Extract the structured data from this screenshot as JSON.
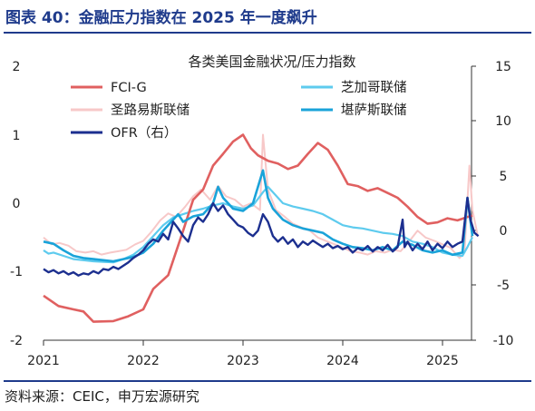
{
  "figure": {
    "title": "图表 40：金融压力指数在 2025 年一度飙升",
    "source": "资料来源：CEIC，申万宏源研究"
  },
  "colors": {
    "brand": "#1f3b8c",
    "fci_g": "#e06060",
    "chicago": "#5ecbee",
    "stlouis": "#f7c8c8",
    "kansas": "#1aa3d9",
    "ofr": "#1c2f8f"
  },
  "chart_data": {
    "type": "line",
    "title": "各类美国金融状况/压力指数",
    "x_ticks": [
      "2021",
      "2022",
      "2023",
      "2024",
      "2025"
    ],
    "x_range": [
      2021.0,
      2025.6
    ],
    "y_left": {
      "range": [
        -2,
        2
      ],
      "ticks": [
        "2",
        "1",
        "0",
        "-1",
        "-2"
      ]
    },
    "y_right": {
      "range": [
        -10,
        15
      ],
      "ticks": [
        "15",
        "10",
        "5",
        "0",
        "-5",
        "-10"
      ]
    },
    "legend_position": "top",
    "grid": false,
    "series": [
      {
        "name": "FCI-G",
        "axis": "left",
        "color_key": "fci_g",
        "points": [
          [
            2021.0,
            -1.35
          ],
          [
            2021.15,
            -1.5
          ],
          [
            2021.3,
            -1.55
          ],
          [
            2021.4,
            -1.58
          ],
          [
            2021.5,
            -1.73
          ],
          [
            2021.7,
            -1.72
          ],
          [
            2021.85,
            -1.65
          ],
          [
            2022.0,
            -1.55
          ],
          [
            2022.1,
            -1.25
          ],
          [
            2022.25,
            -1.05
          ],
          [
            2022.4,
            -0.4
          ],
          [
            2022.5,
            0.05
          ],
          [
            2022.6,
            0.2
          ],
          [
            2022.7,
            0.55
          ],
          [
            2022.8,
            0.72
          ],
          [
            2022.9,
            0.9
          ],
          [
            2023.0,
            1.0
          ],
          [
            2023.08,
            0.8
          ],
          [
            2023.15,
            0.7
          ],
          [
            2023.25,
            0.62
          ],
          [
            2023.35,
            0.58
          ],
          [
            2023.45,
            0.5
          ],
          [
            2023.55,
            0.55
          ],
          [
            2023.65,
            0.72
          ],
          [
            2023.75,
            0.88
          ],
          [
            2023.85,
            0.78
          ],
          [
            2023.95,
            0.55
          ],
          [
            2024.05,
            0.28
          ],
          [
            2024.15,
            0.25
          ],
          [
            2024.25,
            0.18
          ],
          [
            2024.35,
            0.22
          ],
          [
            2024.45,
            0.15
          ],
          [
            2024.55,
            0.08
          ],
          [
            2024.65,
            -0.05
          ],
          [
            2024.75,
            -0.2
          ],
          [
            2024.85,
            -0.3
          ],
          [
            2024.95,
            -0.28
          ],
          [
            2025.05,
            -0.22
          ],
          [
            2025.15,
            -0.25
          ],
          [
            2025.25,
            -0.2
          ],
          [
            2025.3,
            -0.18
          ]
        ]
      },
      {
        "name": "芝加哥联储",
        "axis": "right",
        "color_key": "chicago",
        "points": [
          [
            2021.0,
            -1.8
          ],
          [
            2021.05,
            -2.1
          ],
          [
            2021.1,
            -2.0
          ],
          [
            2021.2,
            -2.3
          ],
          [
            2021.3,
            -2.6
          ],
          [
            2021.4,
            -2.7
          ],
          [
            2021.5,
            -2.8
          ],
          [
            2021.6,
            -2.85
          ],
          [
            2021.7,
            -2.9
          ],
          [
            2021.8,
            -2.6
          ],
          [
            2021.9,
            -2.2
          ],
          [
            2022.0,
            -1.5
          ],
          [
            2022.1,
            -0.5
          ],
          [
            2022.2,
            0.5
          ],
          [
            2022.3,
            1.2
          ],
          [
            2022.4,
            1.5
          ],
          [
            2022.5,
            1.8
          ],
          [
            2022.6,
            2.0
          ],
          [
            2022.7,
            2.3
          ],
          [
            2022.8,
            2.5
          ],
          [
            2022.9,
            2.2
          ],
          [
            2023.0,
            2.0
          ],
          [
            2023.1,
            2.3
          ],
          [
            2023.2,
            3.5
          ],
          [
            2023.25,
            4.0
          ],
          [
            2023.3,
            3.5
          ],
          [
            2023.4,
            2.5
          ],
          [
            2023.5,
            2.2
          ],
          [
            2023.6,
            2.0
          ],
          [
            2023.7,
            1.8
          ],
          [
            2023.8,
            1.5
          ],
          [
            2023.9,
            1.0
          ],
          [
            2024.0,
            0.5
          ],
          [
            2024.1,
            0.3
          ],
          [
            2024.2,
            0.2
          ],
          [
            2024.3,
            0.0
          ],
          [
            2024.4,
            -0.2
          ],
          [
            2024.5,
            -0.3
          ],
          [
            2024.6,
            -0.5
          ],
          [
            2024.7,
            -1.0
          ],
          [
            2024.8,
            -1.2
          ],
          [
            2024.9,
            -1.5
          ],
          [
            2025.0,
            -2.0
          ],
          [
            2025.1,
            -2.2
          ],
          [
            2025.2,
            -2.3
          ],
          [
            2025.25,
            -1.5
          ],
          [
            2025.3,
            -0.6
          ]
        ]
      },
      {
        "name": "圣路易斯联储",
        "axis": "left",
        "color_key": "stlouis",
        "points": [
          [
            2021.0,
            -0.5
          ],
          [
            2021.08,
            -0.6
          ],
          [
            2021.16,
            -0.58
          ],
          [
            2021.25,
            -0.62
          ],
          [
            2021.33,
            -0.7
          ],
          [
            2021.42,
            -0.72
          ],
          [
            2021.5,
            -0.7
          ],
          [
            2021.58,
            -0.75
          ],
          [
            2021.67,
            -0.72
          ],
          [
            2021.75,
            -0.7
          ],
          [
            2021.83,
            -0.68
          ],
          [
            2021.92,
            -0.6
          ],
          [
            2022.0,
            -0.55
          ],
          [
            2022.08,
            -0.42
          ],
          [
            2022.17,
            -0.25
          ],
          [
            2022.25,
            -0.15
          ],
          [
            2022.33,
            -0.2
          ],
          [
            2022.42,
            -0.05
          ],
          [
            2022.5,
            0.1
          ],
          [
            2022.58,
            0.2
          ],
          [
            2022.67,
            0.05
          ],
          [
            2022.75,
            0.25
          ],
          [
            2022.83,
            0.1
          ],
          [
            2022.92,
            0.05
          ],
          [
            2023.0,
            -0.05
          ],
          [
            2023.08,
            0.0
          ],
          [
            2023.17,
            -0.1
          ],
          [
            2023.2,
            1.0
          ],
          [
            2023.25,
            0.2
          ],
          [
            2023.33,
            -0.1
          ],
          [
            2023.42,
            -0.2
          ],
          [
            2023.5,
            -0.3
          ],
          [
            2023.58,
            -0.35
          ],
          [
            2023.67,
            -0.4
          ],
          [
            2023.75,
            -0.5
          ],
          [
            2023.83,
            -0.55
          ],
          [
            2023.92,
            -0.6
          ],
          [
            2024.0,
            -0.65
          ],
          [
            2024.08,
            -0.7
          ],
          [
            2024.17,
            -0.72
          ],
          [
            2024.25,
            -0.75
          ],
          [
            2024.33,
            -0.7
          ],
          [
            2024.42,
            -0.72
          ],
          [
            2024.5,
            -0.68
          ],
          [
            2024.58,
            -0.7
          ],
          [
            2024.67,
            -0.55
          ],
          [
            2024.75,
            -0.4
          ],
          [
            2024.83,
            -0.5
          ],
          [
            2024.92,
            -0.55
          ],
          [
            2025.0,
            -0.6
          ],
          [
            2025.08,
            -0.65
          ],
          [
            2025.17,
            -0.8
          ],
          [
            2025.22,
            -0.72
          ],
          [
            2025.27,
            0.55
          ],
          [
            2025.3,
            -0.1
          ],
          [
            2025.35,
            -0.45
          ]
        ]
      },
      {
        "name": "堪萨斯联储",
        "axis": "right",
        "color_key": "kansas",
        "points": [
          [
            2021.0,
            -1.0
          ],
          [
            2021.1,
            -1.2
          ],
          [
            2021.2,
            -1.8
          ],
          [
            2021.3,
            -2.3
          ],
          [
            2021.4,
            -2.5
          ],
          [
            2021.5,
            -2.6
          ],
          [
            2021.6,
            -2.7
          ],
          [
            2021.7,
            -2.8
          ],
          [
            2021.8,
            -2.6
          ],
          [
            2021.9,
            -2.4
          ],
          [
            2022.0,
            -2.0
          ],
          [
            2022.1,
            -1.2
          ],
          [
            2022.2,
            0.0
          ],
          [
            2022.3,
            1.0
          ],
          [
            2022.35,
            1.5
          ],
          [
            2022.4,
            0.8
          ],
          [
            2022.5,
            1.3
          ],
          [
            2022.6,
            1.5
          ],
          [
            2022.7,
            2.5
          ],
          [
            2022.75,
            4.0
          ],
          [
            2022.8,
            3.0
          ],
          [
            2022.9,
            2.0
          ],
          [
            2023.0,
            1.8
          ],
          [
            2023.1,
            2.5
          ],
          [
            2023.2,
            5.5
          ],
          [
            2023.25,
            3.0
          ],
          [
            2023.3,
            2.0
          ],
          [
            2023.4,
            1.0
          ],
          [
            2023.5,
            0.5
          ],
          [
            2023.6,
            0.2
          ],
          [
            2023.7,
            0.0
          ],
          [
            2023.8,
            -0.2
          ],
          [
            2023.9,
            -0.8
          ],
          [
            2024.0,
            -1.2
          ],
          [
            2024.1,
            -1.5
          ],
          [
            2024.2,
            -1.6
          ],
          [
            2024.3,
            -1.8
          ],
          [
            2024.4,
            -1.5
          ],
          [
            2024.5,
            -1.8
          ],
          [
            2024.6,
            -1.0
          ],
          [
            2024.7,
            -1.3
          ],
          [
            2024.8,
            -1.8
          ],
          [
            2024.9,
            -2.0
          ],
          [
            2025.0,
            -1.8
          ],
          [
            2025.1,
            -2.2
          ],
          [
            2025.2,
            -2.0
          ],
          [
            2025.25,
            3.0
          ],
          [
            2025.3,
            -0.5
          ]
        ]
      },
      {
        "name": "OFR（右）",
        "axis": "right",
        "color_key": "ofr",
        "points": [
          [
            2021.0,
            -3.5
          ],
          [
            2021.05,
            -3.8
          ],
          [
            2021.1,
            -3.6
          ],
          [
            2021.15,
            -3.9
          ],
          [
            2021.2,
            -3.7
          ],
          [
            2021.25,
            -4.0
          ],
          [
            2021.3,
            -3.8
          ],
          [
            2021.35,
            -4.1
          ],
          [
            2021.4,
            -3.9
          ],
          [
            2021.45,
            -4.0
          ],
          [
            2021.5,
            -3.7
          ],
          [
            2021.55,
            -3.9
          ],
          [
            2021.6,
            -3.5
          ],
          [
            2021.65,
            -3.6
          ],
          [
            2021.7,
            -3.3
          ],
          [
            2021.75,
            -3.5
          ],
          [
            2021.8,
            -3.2
          ],
          [
            2021.85,
            -2.9
          ],
          [
            2021.9,
            -2.5
          ],
          [
            2021.95,
            -2.2
          ],
          [
            2022.0,
            -1.8
          ],
          [
            2022.05,
            -1.2
          ],
          [
            2022.1,
            -0.8
          ],
          [
            2022.15,
            -1.0
          ],
          [
            2022.2,
            -0.3
          ],
          [
            2022.25,
            -0.8
          ],
          [
            2022.3,
            0.8
          ],
          [
            2022.35,
            0.2
          ],
          [
            2022.4,
            -0.5
          ],
          [
            2022.45,
            -1.0
          ],
          [
            2022.5,
            0.5
          ],
          [
            2022.55,
            1.2
          ],
          [
            2022.6,
            0.8
          ],
          [
            2022.65,
            1.5
          ],
          [
            2022.7,
            2.5
          ],
          [
            2022.75,
            1.8
          ],
          [
            2022.8,
            2.3
          ],
          [
            2022.85,
            1.5
          ],
          [
            2022.9,
            1.0
          ],
          [
            2022.95,
            0.5
          ],
          [
            2023.0,
            0.3
          ],
          [
            2023.05,
            -0.2
          ],
          [
            2023.1,
            -0.5
          ],
          [
            2023.15,
            0.0
          ],
          [
            2023.2,
            1.5
          ],
          [
            2023.25,
            0.8
          ],
          [
            2023.3,
            -0.5
          ],
          [
            2023.35,
            -1.0
          ],
          [
            2023.4,
            -0.6
          ],
          [
            2023.45,
            -1.2
          ],
          [
            2023.5,
            -0.8
          ],
          [
            2023.55,
            -1.5
          ],
          [
            2023.6,
            -1.0
          ],
          [
            2023.65,
            -1.3
          ],
          [
            2023.7,
            -0.9
          ],
          [
            2023.75,
            -1.2
          ],
          [
            2023.8,
            -1.5
          ],
          [
            2023.85,
            -1.2
          ],
          [
            2023.9,
            -1.6
          ],
          [
            2023.95,
            -1.4
          ],
          [
            2024.0,
            -1.7
          ],
          [
            2024.05,
            -1.5
          ],
          [
            2024.1,
            -2.0
          ],
          [
            2024.15,
            -1.6
          ],
          [
            2024.2,
            -1.8
          ],
          [
            2024.25,
            -1.4
          ],
          [
            2024.3,
            -1.9
          ],
          [
            2024.35,
            -1.5
          ],
          [
            2024.4,
            -1.8
          ],
          [
            2024.45,
            -1.3
          ],
          [
            2024.5,
            -1.9
          ],
          [
            2024.55,
            -1.5
          ],
          [
            2024.6,
            1.0
          ],
          [
            2024.62,
            -1.5
          ],
          [
            2024.65,
            -1.0
          ],
          [
            2024.7,
            -1.8
          ],
          [
            2024.75,
            -1.2
          ],
          [
            2024.8,
            -1.7
          ],
          [
            2024.85,
            -1.0
          ],
          [
            2024.9,
            -1.8
          ],
          [
            2024.95,
            -1.2
          ],
          [
            2025.0,
            -1.6
          ],
          [
            2025.05,
            -1.0
          ],
          [
            2025.1,
            -1.5
          ],
          [
            2025.15,
            -1.2
          ],
          [
            2025.2,
            -1.0
          ],
          [
            2025.25,
            3.0
          ],
          [
            2025.28,
            1.0
          ],
          [
            2025.32,
            -0.2
          ],
          [
            2025.36,
            -0.5
          ]
        ]
      }
    ]
  }
}
